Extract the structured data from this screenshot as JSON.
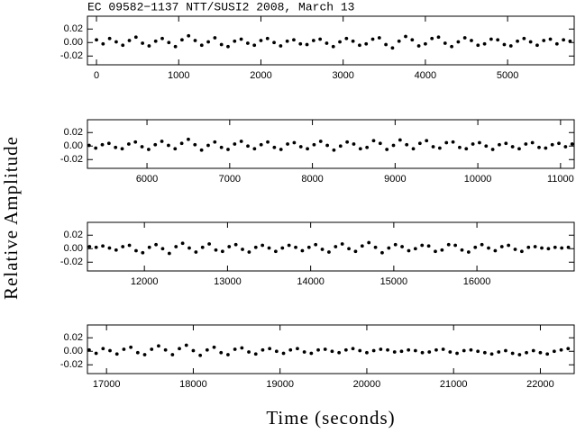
{
  "chart_data": [
    {
      "type": "scatter",
      "title": "EC 09582−1137  NTT/SUSI2  2008, March 13",
      "ylabel": "Relative Amplitude",
      "color": "#000000",
      "xlim": [
        -110,
        5810
      ],
      "ylim": [
        -0.033,
        0.039
      ],
      "xticks": [
        0,
        1000,
        2000,
        3000,
        4000,
        5000
      ],
      "yticks": [
        0.02,
        {
          "value": 0,
          "label": "0.00"
        },
        -0.02
      ],
      "x": [
        0,
        80,
        160,
        240,
        320,
        400,
        480,
        560,
        640,
        720,
        800,
        880,
        960,
        1040,
        1120,
        1200,
        1280,
        1360,
        1440,
        1520,
        1600,
        1680,
        1760,
        1840,
        1920,
        2000,
        2080,
        2160,
        2240,
        2320,
        2400,
        2480,
        2560,
        2640,
        2720,
        2800,
        2880,
        2960,
        3040,
        3120,
        3200,
        3280,
        3360,
        3440,
        3520,
        3600,
        3680,
        3760,
        3840,
        3920,
        4000,
        4080,
        4160,
        4240,
        4320,
        4400,
        4480,
        4560,
        4640,
        4720,
        4800,
        4880,
        4960,
        5040,
        5120,
        5200,
        5280,
        5360,
        5440,
        5520,
        5600,
        5680,
        5760
      ],
      "values": [
        0.004,
        -0.002,
        0.006,
        0.001,
        -0.004,
        0.003,
        0.008,
        -0.001,
        -0.005,
        0.002,
        0.006,
        0.0,
        -0.006,
        0.004,
        0.01,
        0.003,
        -0.004,
        0.001,
        0.007,
        -0.003,
        -0.006,
        0.002,
        0.005,
        -0.001,
        -0.004,
        0.003,
        0.006,
        0.0,
        -0.005,
        0.002,
        0.004,
        -0.002,
        -0.003,
        0.003,
        0.005,
        -0.001,
        -0.006,
        0.001,
        0.006,
        0.002,
        -0.004,
        -0.002,
        0.005,
        0.007,
        -0.003,
        -0.008,
        0.002,
        0.009,
        0.004,
        -0.005,
        -0.002,
        0.006,
        0.008,
        -0.001,
        -0.006,
        0.001,
        0.007,
        0.003,
        -0.004,
        -0.002,
        0.005,
        0.004,
        -0.003,
        -0.005,
        0.002,
        0.006,
        0.001,
        -0.004,
        0.003,
        0.005,
        -0.002,
        0.004,
        0.002
      ]
    },
    {
      "type": "scatter",
      "color": "#000000",
      "xlim": [
        5280,
        11165
      ],
      "ylim": [
        -0.033,
        0.039
      ],
      "xticks": [
        6000,
        7000,
        8000,
        9000,
        10000,
        11000
      ],
      "yticks": [
        0.02,
        {
          "value": 0,
          "label": "0.00"
        },
        -0.02
      ],
      "x": [
        5300,
        5380,
        5460,
        5540,
        5620,
        5700,
        5780,
        5860,
        5940,
        6020,
        6100,
        6180,
        6260,
        6340,
        6420,
        6500,
        6580,
        6660,
        6740,
        6820,
        6900,
        6980,
        7060,
        7140,
        7220,
        7300,
        7380,
        7460,
        7540,
        7620,
        7700,
        7780,
        7860,
        7940,
        8020,
        8100,
        8180,
        8260,
        8340,
        8420,
        8500,
        8580,
        8660,
        8740,
        8820,
        8900,
        8980,
        9060,
        9140,
        9220,
        9300,
        9380,
        9460,
        9540,
        9620,
        9700,
        9780,
        9860,
        9940,
        10020,
        10100,
        10180,
        10260,
        10340,
        10420,
        10500,
        10580,
        10660,
        10740,
        10820,
        10900,
        10980,
        11060,
        11140
      ],
      "values": [
        0.001,
        -0.003,
        0.002,
        0.004,
        -0.002,
        -0.004,
        0.003,
        0.006,
        -0.001,
        -0.005,
        0.002,
        0.007,
        0.001,
        -0.004,
        0.004,
        0.01,
        0.002,
        -0.006,
        0.001,
        0.006,
        -0.002,
        -0.005,
        0.003,
        0.007,
        0.0,
        -0.004,
        0.002,
        0.006,
        -0.002,
        -0.005,
        0.003,
        0.005,
        -0.001,
        -0.004,
        0.002,
        0.007,
        0.001,
        -0.006,
        0.0,
        0.006,
        0.003,
        -0.004,
        -0.002,
        0.008,
        0.004,
        -0.005,
        0.001,
        0.009,
        0.002,
        -0.004,
        0.004,
        0.008,
        -0.001,
        -0.003,
        0.005,
        0.006,
        -0.002,
        -0.004,
        0.003,
        0.005,
        0.0,
        -0.005,
        0.002,
        0.004,
        -0.001,
        -0.004,
        0.003,
        0.005,
        -0.002,
        -0.003,
        0.002,
        0.004,
        -0.001,
        0.003
      ]
    },
    {
      "type": "scatter",
      "color": "#000000",
      "xlim": [
        11315,
        17170
      ],
      "ylim": [
        -0.033,
        0.039
      ],
      "xticks": [
        12000,
        13000,
        14000,
        15000,
        16000
      ],
      "yticks": [
        0.02,
        {
          "value": 0,
          "label": "0.00"
        },
        -0.02
      ],
      "x": [
        11340,
        11420,
        11500,
        11580,
        11660,
        11740,
        11820,
        11900,
        11980,
        12060,
        12140,
        12220,
        12300,
        12380,
        12460,
        12540,
        12620,
        12700,
        12780,
        12860,
        12940,
        13020,
        13100,
        13180,
        13260,
        13340,
        13420,
        13500,
        13580,
        13660,
        13740,
        13820,
        13900,
        13980,
        14060,
        14140,
        14220,
        14300,
        14380,
        14460,
        14540,
        14620,
        14700,
        14780,
        14860,
        14940,
        15020,
        15100,
        15180,
        15260,
        15340,
        15420,
        15500,
        15580,
        15660,
        15740,
        15820,
        15900,
        15980,
        16060,
        16140,
        16220,
        16300,
        16380,
        16460,
        16540,
        16620,
        16700,
        16780,
        16860,
        16940,
        17020,
        17100
      ],
      "values": [
        0.003,
        0.002,
        0.004,
        0.001,
        -0.002,
        0.003,
        0.005,
        -0.003,
        -0.006,
        0.002,
        0.006,
        0.0,
        -0.007,
        0.003,
        0.008,
        0.001,
        -0.005,
        0.002,
        0.007,
        -0.002,
        -0.004,
        0.003,
        0.006,
        -0.001,
        -0.005,
        0.002,
        0.005,
        0.001,
        -0.004,
        0.001,
        0.005,
        0.002,
        -0.003,
        0.002,
        0.006,
        -0.001,
        -0.005,
        0.003,
        0.007,
        0.0,
        -0.004,
        0.004,
        0.009,
        0.002,
        -0.006,
        0.001,
        0.006,
        0.003,
        -0.003,
        0.0,
        0.005,
        0.004,
        -0.004,
        -0.002,
        0.006,
        0.005,
        -0.002,
        -0.005,
        0.002,
        0.006,
        0.001,
        -0.003,
        0.003,
        0.005,
        -0.001,
        -0.004,
        0.002,
        0.003,
        0.001,
        0.0,
        0.002,
        0.001,
        0.002
      ]
    },
    {
      "type": "scatter",
      "xlabel": "Time (seconds)",
      "color": "#000000",
      "xlim": [
        16780,
        22390
      ],
      "ylim": [
        -0.033,
        0.039
      ],
      "xticks": [
        17000,
        18000,
        19000,
        20000,
        21000,
        22000
      ],
      "yticks": [
        0.02,
        {
          "value": 0,
          "label": "0.00"
        },
        -0.02
      ],
      "x": [
        16800,
        16880,
        16960,
        17040,
        17120,
        17200,
        17280,
        17360,
        17440,
        17520,
        17600,
        17680,
        17760,
        17840,
        17920,
        18000,
        18080,
        18160,
        18240,
        18320,
        18400,
        18480,
        18560,
        18640,
        18720,
        18800,
        18880,
        18960,
        19040,
        19120,
        19200,
        19280,
        19360,
        19440,
        19520,
        19600,
        19680,
        19760,
        19840,
        19920,
        20000,
        20080,
        20160,
        20240,
        20320,
        20400,
        20480,
        20560,
        20640,
        20720,
        20800,
        20880,
        20960,
        21040,
        21120,
        21200,
        21280,
        21360,
        21440,
        21520,
        21600,
        21680,
        21760,
        21840,
        21920,
        22000,
        22080,
        22160,
        22240,
        22320
      ],
      "values": [
        0.002,
        -0.003,
        0.004,
        0.001,
        -0.004,
        0.003,
        0.006,
        -0.002,
        -0.005,
        0.003,
        0.008,
        0.002,
        -0.005,
        0.004,
        0.009,
        0.001,
        -0.006,
        0.002,
        0.006,
        -0.002,
        -0.005,
        0.003,
        0.005,
        -0.001,
        -0.004,
        0.002,
        0.004,
        0.0,
        -0.003,
        0.002,
        0.004,
        -0.001,
        -0.003,
        0.002,
        0.003,
        0.0,
        -0.002,
        0.002,
        0.004,
        0.001,
        -0.002,
        0.001,
        0.003,
        0.002,
        -0.001,
        0.0,
        0.002,
        0.001,
        -0.002,
        -0.001,
        0.002,
        0.003,
        -0.001,
        -0.003,
        0.001,
        0.002,
        0.0,
        -0.002,
        -0.004,
        -0.001,
        0.001,
        -0.003,
        -0.005,
        -0.002,
        0.001,
        -0.002,
        -0.004,
        0.0,
        0.002,
        0.004
      ]
    }
  ]
}
